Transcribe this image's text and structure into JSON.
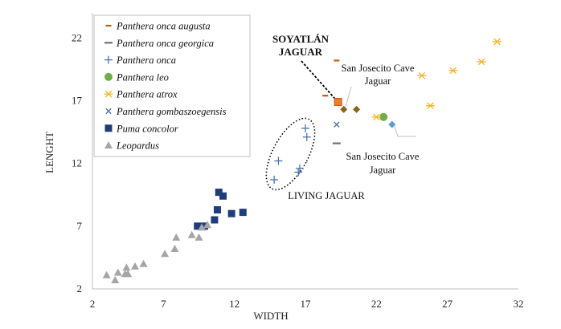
{
  "colors": {
    "augusta": "#c55a11",
    "georgica": "#6f6f6f",
    "onca": "#4a73b5",
    "leo": "#70ad47",
    "atrox": "#f4b521",
    "gombaszoegensis": "#4a73b5",
    "concolor": "#1f3d7a",
    "leopardus": "#a6a6a6",
    "soyatlan": "#ed7d31",
    "sj_diamond": "#8a6420",
    "sj_blue": "#5b9bd5"
  },
  "chart_data": {
    "type": "scatter",
    "xlabel": "WIDTH",
    "ylabel": "LENGHT",
    "xlim": [
      2,
      32
    ],
    "ylim": [
      2,
      24
    ],
    "xticks": [
      "2",
      "7",
      "12",
      "17",
      "22",
      "27",
      "32"
    ],
    "yticks": [
      "2",
      "7",
      "12",
      "17",
      "22"
    ],
    "series": [
      {
        "name": "Panthera onca augusta",
        "marker": "dash",
        "color": "augusta",
        "points": [
          [
            18.4,
            17.4
          ],
          [
            19.2,
            20.2
          ]
        ]
      },
      {
        "name": "Panthera onca georgica",
        "marker": "wide-dash",
        "color": "georgica",
        "points": [
          [
            19.2,
            13.6
          ]
        ]
      },
      {
        "name": "Panthera onca",
        "marker": "plus",
        "color": "onca",
        "points": [
          [
            14.8,
            10.7
          ],
          [
            15.1,
            12.2
          ],
          [
            16.5,
            11.3
          ],
          [
            16.6,
            11.6
          ],
          [
            17.1,
            14.1
          ],
          [
            17.0,
            14.8
          ]
        ]
      },
      {
        "name": "Panthera leo",
        "marker": "circle",
        "color": "leo",
        "points": [
          [
            22.5,
            15.7
          ]
        ]
      },
      {
        "name": "Panthera atrox",
        "marker": "star",
        "color": "atrox",
        "points": [
          [
            22.0,
            15.7
          ],
          [
            25.2,
            19.0
          ],
          [
            25.8,
            16.6
          ],
          [
            27.4,
            19.4
          ],
          [
            29.4,
            20.1
          ],
          [
            30.5,
            21.7
          ]
        ]
      },
      {
        "name": "Panthera gombaszoegensis",
        "marker": "x",
        "color": "gombaszoegensis",
        "points": [
          [
            19.2,
            15.1
          ]
        ]
      },
      {
        "name": "Puma concolor",
        "marker": "square",
        "color": "concolor",
        "points": [
          [
            9.4,
            7.0
          ],
          [
            9.9,
            7.0
          ],
          [
            10.6,
            7.5
          ],
          [
            10.8,
            8.3
          ],
          [
            10.9,
            9.7
          ],
          [
            11.2,
            9.4
          ],
          [
            11.8,
            8.0
          ],
          [
            12.6,
            8.1
          ]
        ]
      },
      {
        "name": "Leopardus",
        "marker": "triangle",
        "color": "leopardus",
        "points": [
          [
            3.0,
            3.1
          ],
          [
            3.6,
            2.7
          ],
          [
            3.8,
            3.3
          ],
          [
            4.3,
            3.2
          ],
          [
            4.4,
            3.7
          ],
          [
            4.5,
            3.2
          ],
          [
            5.0,
            3.8
          ],
          [
            5.6,
            4.0
          ],
          [
            7.1,
            4.8
          ],
          [
            7.8,
            5.2
          ],
          [
            7.9,
            6.1
          ],
          [
            9.0,
            6.3
          ],
          [
            9.5,
            6.1
          ],
          [
            9.7,
            6.9
          ],
          [
            10.1,
            7.1
          ]
        ]
      }
    ],
    "specials": [
      {
        "name": "SOYATLÁN JAGUAR",
        "marker": "square",
        "color": "soyatlan",
        "point": [
          19.3,
          16.9
        ]
      },
      {
        "name": "San Josecito Cave Jaguar",
        "marker": "diamond",
        "color": "sj_diamond",
        "point": [
          19.7,
          16.3
        ]
      },
      {
        "name": "San Josecito Cave Jaguar",
        "marker": "diamond",
        "color": "sj_diamond",
        "point": [
          20.6,
          16.3
        ]
      },
      {
        "name": "San Josecito Cave Jaguar",
        "marker": "diamond",
        "color": "sj_blue",
        "point": [
          23.1,
          15.1
        ]
      }
    ],
    "annotations": {
      "soyatlan": [
        "SOYATLÁN",
        "JAGUAR"
      ],
      "san_josecito_top": [
        "San Josecito Cave",
        "Jaguar"
      ],
      "san_josecito_bottom": [
        "San Josecito Cave",
        "Jaguar"
      ],
      "living_jaguar": "LIVING JAGUAR"
    }
  }
}
